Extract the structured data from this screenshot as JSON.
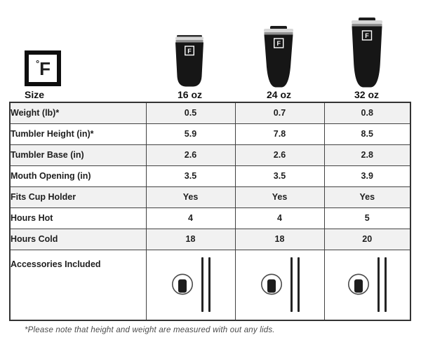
{
  "brand": {
    "logo": {
      "degree": "°",
      "letter": "F"
    }
  },
  "size_header": {
    "label": "Size"
  },
  "products": [
    {
      "label": "16 oz",
      "image": "black-tumbler-16oz"
    },
    {
      "label": "24 oz",
      "image": "black-tumbler-24oz"
    },
    {
      "label": "32 oz",
      "image": "black-tumbler-32oz"
    }
  ],
  "table": {
    "rows": [
      {
        "label": "Weight (lb)*",
        "values": [
          "0.5",
          "0.7",
          "0.8"
        ]
      },
      {
        "label": "Tumbler Height (in)*",
        "values": [
          "5.9",
          "7.8",
          "8.5"
        ]
      },
      {
        "label": "Tumbler Base (in)",
        "values": [
          "2.6",
          "2.6",
          "2.8"
        ]
      },
      {
        "label": "Mouth Opening (in)",
        "values": [
          "3.5",
          "3.5",
          "3.9"
        ]
      },
      {
        "label": "Fits Cup Holder",
        "values": [
          "Yes",
          "Yes",
          "Yes"
        ]
      },
      {
        "label": "Hours Hot",
        "values": [
          "4",
          "4",
          "5"
        ]
      },
      {
        "label": "Hours Cold",
        "values": [
          "18",
          "18",
          "20"
        ]
      }
    ],
    "accessories_row": {
      "label": "Accessories Included",
      "icons": [
        "tumbler-lid-icon",
        "two-straws-icon"
      ]
    }
  },
  "footnote": "*Please note that height and weight are measured with out any lids.",
  "colors": {
    "row_stripe": "#f1f1f1",
    "table_border": "#424242",
    "text": "#1e1e1e",
    "tumbler_body": "#161616",
    "lid_silver": "#d7d7d7"
  },
  "chart_data": {
    "type": "table",
    "columns": [
      "Size",
      "16 oz",
      "24 oz",
      "32 oz"
    ],
    "rows": [
      [
        "Weight (lb)*",
        "0.5",
        "0.7",
        "0.8"
      ],
      [
        "Tumbler Height (in)*",
        "5.9",
        "7.8",
        "8.5"
      ],
      [
        "Tumbler Base (in)",
        "2.6",
        "2.6",
        "2.8"
      ],
      [
        "Mouth Opening (in)",
        "3.5",
        "3.5",
        "3.9"
      ],
      [
        "Fits Cup Holder",
        "Yes",
        "Yes",
        "Yes"
      ],
      [
        "Hours Hot",
        "4",
        "4",
        "5"
      ],
      [
        "Hours Cold",
        "18",
        "18",
        "20"
      ],
      [
        "Accessories Included",
        "lid + 2 straws",
        "lid + 2 straws",
        "lid + 2 straws"
      ]
    ]
  }
}
